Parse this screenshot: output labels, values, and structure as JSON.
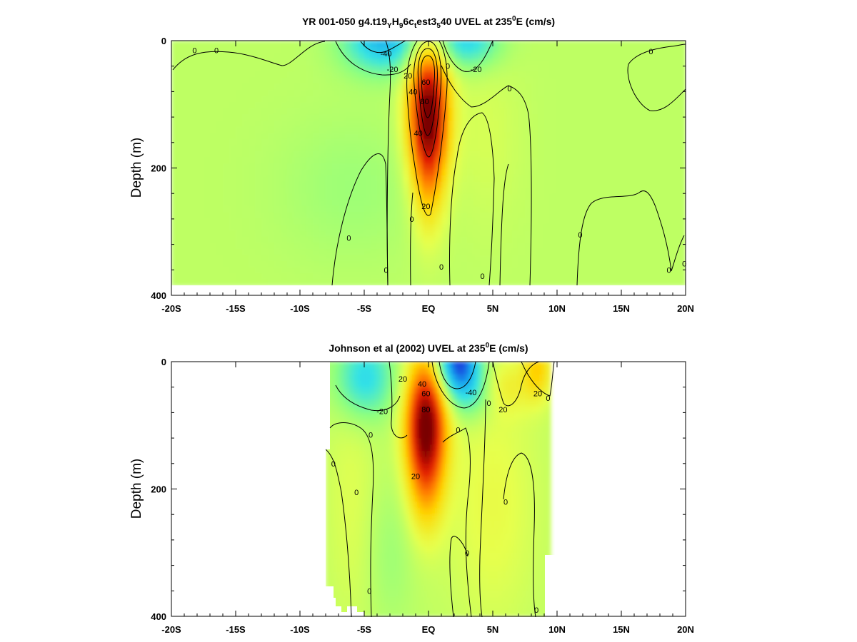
{
  "chart_data": [
    {
      "type": "heatmap",
      "title_parts": [
        "YR 001-050 g4.t19",
        "Y",
        "H",
        "9",
        "6c",
        "t",
        "est3",
        "5",
        "40 UVEL at 235",
        "0",
        "E (cm/s)"
      ],
      "xlabel": "",
      "ylabel": "Depth (m)",
      "x_tick_labels": [
        "-20S",
        "-15S",
        "-10S",
        "-5S",
        "EQ",
        "5N",
        "10N",
        "15N",
        "20N"
      ],
      "x_tick_values": [
        -20,
        -15,
        -10,
        -5,
        0,
        5,
        10,
        15,
        20
      ],
      "y_tick_labels": [
        "0",
        "200",
        "400"
      ],
      "y_tick_values": [
        0,
        200,
        400
      ],
      "xlim": [
        -20,
        20
      ],
      "ylim": [
        400,
        0
      ],
      "data_extent_x": [
        -20,
        20
      ],
      "data_depth_limit": 385,
      "units": "cm/s",
      "colorscale": [
        "#1a2dd9",
        "#18a6ef",
        "#33e2e6",
        "#8cff80",
        "#e6ff4d",
        "#ffd400",
        "#ff7a00",
        "#e01a00",
        "#7a0000"
      ],
      "colorscale_range": [
        -80,
        100
      ],
      "features": [
        {
          "kind": "jet",
          "x": 0,
          "depth": 110,
          "xwidth": 1.1,
          "dwidth": 75,
          "value": 100
        },
        {
          "kind": "jet",
          "x": 0,
          "depth": 220,
          "xwidth": 0.9,
          "dwidth": 70,
          "value": 25
        },
        {
          "kind": "jet",
          "x": -3.5,
          "depth": 0,
          "xwidth": 2.2,
          "dwidth": 35,
          "value": -50
        },
        {
          "kind": "jet",
          "x": 3,
          "depth": 0,
          "xwidth": 1.8,
          "dwidth": 30,
          "value": -40
        },
        {
          "kind": "jet",
          "x": -6,
          "depth": 230,
          "xwidth": 4,
          "dwidth": 80,
          "value": -8
        },
        {
          "kind": "jet",
          "x": 4.5,
          "depth": 150,
          "xwidth": 2,
          "dwidth": 100,
          "value": 6
        }
      ],
      "contour_labels": [
        {
          "x": -18.2,
          "depth": 15,
          "text": "0"
        },
        {
          "x": -16.5,
          "depth": 15,
          "text": "0"
        },
        {
          "x": -3.3,
          "depth": 20,
          "text": "-40"
        },
        {
          "x": -2.8,
          "depth": 45,
          "text": "-20"
        },
        {
          "x": -1.6,
          "depth": 55,
          "text": "20"
        },
        {
          "x": -1.2,
          "depth": 80,
          "text": "40"
        },
        {
          "x": -0.2,
          "depth": 65,
          "text": "60"
        },
        {
          "x": -0.3,
          "depth": 95,
          "text": "80"
        },
        {
          "x": -0.8,
          "depth": 145,
          "text": "40"
        },
        {
          "x": -0.2,
          "depth": 260,
          "text": "20"
        },
        {
          "x": 1.5,
          "depth": 40,
          "text": "0"
        },
        {
          "x": 3.7,
          "depth": 45,
          "text": "-20"
        },
        {
          "x": 6.3,
          "depth": 75,
          "text": "0"
        },
        {
          "x": -6.2,
          "depth": 310,
          "text": "0"
        },
        {
          "x": -1.3,
          "depth": 280,
          "text": "0"
        },
        {
          "x": 1.0,
          "depth": 355,
          "text": "0"
        },
        {
          "x": -3.3,
          "depth": 360,
          "text": "0"
        },
        {
          "x": 4.2,
          "depth": 370,
          "text": "0"
        },
        {
          "x": 11.8,
          "depth": 305,
          "text": "0"
        },
        {
          "x": 18.7,
          "depth": 360,
          "text": "0"
        },
        {
          "x": 19.9,
          "depth": 350,
          "text": "0"
        },
        {
          "x": 17.3,
          "depth": 17,
          "text": "0"
        }
      ]
    },
    {
      "type": "heatmap",
      "title_parts": [
        "Johnson et al (2002) UVEL at 235",
        "0",
        "E (cm/s)"
      ],
      "xlabel": "",
      "ylabel": "Depth (m)",
      "x_tick_labels": [
        "-20S",
        "-15S",
        "-10S",
        "-5S",
        "EQ",
        "5N",
        "10N",
        "15N",
        "20N"
      ],
      "x_tick_values": [
        -20,
        -15,
        -10,
        -5,
        0,
        5,
        10,
        15,
        20
      ],
      "y_tick_labels": [
        "0",
        "200",
        "400"
      ],
      "y_tick_values": [
        0,
        200,
        400
      ],
      "xlim": [
        -20,
        20
      ],
      "ylim": [
        400,
        0
      ],
      "data_extent_x": [
        -8,
        9.5
      ],
      "data_depth_limit": 400,
      "units": "cm/s",
      "colorscale": [
        "#1a2dd9",
        "#18a6ef",
        "#33e2e6",
        "#8cff80",
        "#e6ff4d",
        "#ffd400",
        "#ff7a00",
        "#e01a00",
        "#7a0000"
      ],
      "colorscale_range": [
        -80,
        100
      ],
      "features": [
        {
          "kind": "jet",
          "x": -0.2,
          "depth": 95,
          "xwidth": 1.1,
          "dwidth": 70,
          "value": 100
        },
        {
          "kind": "jet",
          "x": -0.2,
          "depth": 200,
          "xwidth": 1.0,
          "dwidth": 60,
          "value": 25
        },
        {
          "kind": "jet",
          "x": 2.3,
          "depth": 0,
          "xwidth": 1.2,
          "dwidth": 35,
          "value": -75
        },
        {
          "kind": "jet",
          "x": 3.3,
          "depth": 50,
          "xwidth": 1.3,
          "dwidth": 30,
          "value": -25
        },
        {
          "kind": "jet",
          "x": -5,
          "depth": 25,
          "xwidth": 1.6,
          "dwidth": 45,
          "value": -40
        },
        {
          "kind": "jet",
          "x": 8.5,
          "depth": 10,
          "xwidth": 0.8,
          "dwidth": 35,
          "value": 30
        },
        {
          "kind": "jet",
          "x": 6,
          "depth": 40,
          "xwidth": 1.5,
          "dwidth": 30,
          "value": 15
        },
        {
          "kind": "jet",
          "x": 5,
          "depth": 220,
          "xwidth": 2.5,
          "dwidth": 140,
          "value": 12
        },
        {
          "kind": "jet",
          "x": -6,
          "depth": 210,
          "xwidth": 1.5,
          "dwidth": 150,
          "value": 8
        },
        {
          "kind": "jet",
          "x": -3,
          "depth": 300,
          "xwidth": 1.3,
          "dwidth": 80,
          "value": -8
        }
      ],
      "contour_labels": [
        {
          "x": -2.0,
          "depth": 27,
          "text": "20"
        },
        {
          "x": -0.5,
          "depth": 35,
          "text": "40"
        },
        {
          "x": -0.2,
          "depth": 50,
          "text": "60"
        },
        {
          "x": -0.2,
          "depth": 75,
          "text": "80"
        },
        {
          "x": 3.3,
          "depth": 48,
          "text": "-40"
        },
        {
          "x": -3.6,
          "depth": 78,
          "text": "-20"
        },
        {
          "x": 5.8,
          "depth": 75,
          "text": "20"
        },
        {
          "x": 4.7,
          "depth": 65,
          "text": "0"
        },
        {
          "x": 2.3,
          "depth": 107,
          "text": "0"
        },
        {
          "x": -4.5,
          "depth": 115,
          "text": "0"
        },
        {
          "x": -7.4,
          "depth": 160,
          "text": "0"
        },
        {
          "x": -1.0,
          "depth": 180,
          "text": "20"
        },
        {
          "x": -5.6,
          "depth": 205,
          "text": "0"
        },
        {
          "x": 6.0,
          "depth": 220,
          "text": "0"
        },
        {
          "x": 9.3,
          "depth": 57,
          "text": "0"
        },
        {
          "x": 8.5,
          "depth": 50,
          "text": "20"
        },
        {
          "x": 3.0,
          "depth": 300,
          "text": "0"
        },
        {
          "x": -4.6,
          "depth": 360,
          "text": "0"
        },
        {
          "x": 8.4,
          "depth": 390,
          "text": "0"
        }
      ]
    }
  ]
}
